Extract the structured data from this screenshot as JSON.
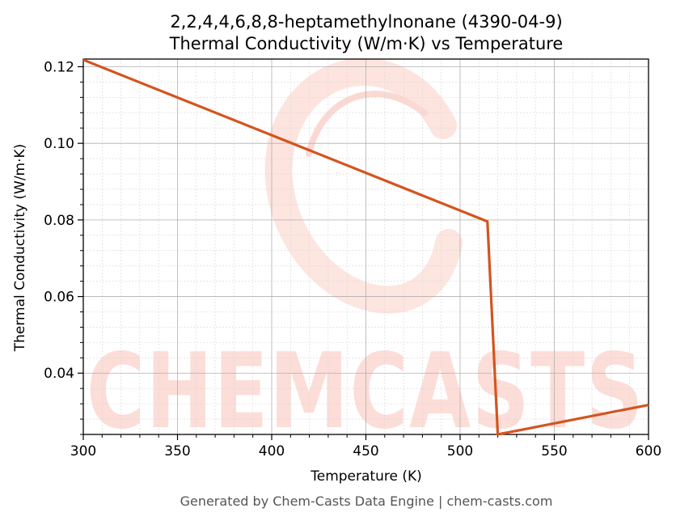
{
  "chart_data": {
    "type": "line",
    "title_line1": "2,2,4,4,6,8,8-heptamethylnonane (4390-04-9)",
    "title_line2": "Thermal Conductivity (W/m·K) vs Temperature",
    "xlabel": "Temperature (K)",
    "ylabel": "Thermal Conductivity (W/m·K)",
    "xlim": [
      300,
      600
    ],
    "ylim": [
      0.024,
      0.122
    ],
    "xticks": [
      300,
      350,
      400,
      450,
      500,
      550,
      600
    ],
    "yticks": [
      0.04,
      0.06,
      0.08,
      0.1,
      0.12
    ],
    "ytick_labels": [
      "0.04",
      "0.06",
      "0.08",
      "0.10",
      "0.12"
    ],
    "grid": true,
    "line_color": "#d4541f",
    "series": [
      {
        "x": [
          300,
          514.5,
          520,
          600
        ],
        "y": [
          0.1218,
          0.0796,
          0.024,
          0.0317
        ]
      }
    ]
  },
  "watermark": {
    "text": "CHEMCASTS",
    "color": "#fbd3cc"
  },
  "footer": "Generated by Chem-Casts Data Engine | chem-casts.com"
}
